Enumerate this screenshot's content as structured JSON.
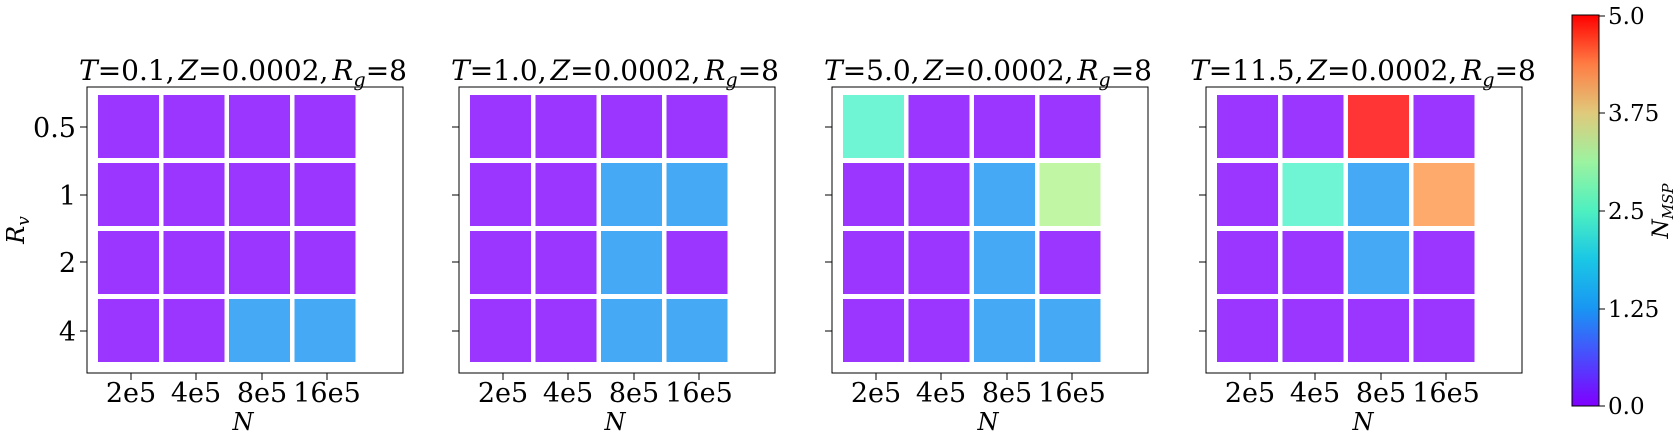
{
  "chart_data": [
    {
      "type": "heatmap",
      "title": "T = 0.1, Z = 0.0002, R_g = 8",
      "title_parts": {
        "p1": "T",
        "p2": "=0.1,",
        "p3": "Z",
        "p4": "=0.0002,",
        "p5": "R",
        "p6": "g",
        "p7": "=8"
      },
      "xlabel": "N",
      "ylabel": "R_v",
      "ylabel_parts": {
        "main": "R",
        "sub": "v"
      },
      "x_categories": [
        "2e5",
        "4e5",
        "8e5",
        "16e5"
      ],
      "y_categories": [
        "0.5",
        "1",
        "2",
        "4"
      ],
      "values": [
        [
          0,
          0,
          0,
          0
        ],
        [
          0,
          0,
          0,
          0
        ],
        [
          0,
          0,
          0,
          0
        ],
        [
          0,
          0,
          1,
          1
        ]
      ]
    },
    {
      "type": "heatmap",
      "title": "T = 1.0, Z = 0.0002, R_g = 8",
      "title_parts": {
        "p1": "T",
        "p2": "=1.0,",
        "p3": "Z",
        "p4": "=0.0002,",
        "p5": "R",
        "p6": "g",
        "p7": "=8"
      },
      "xlabel": "N",
      "x_categories": [
        "2e5",
        "4e5",
        "8e5",
        "16e5"
      ],
      "y_categories": [
        "0.5",
        "1",
        "2",
        "4"
      ],
      "values": [
        [
          0,
          0,
          0,
          0
        ],
        [
          0,
          0,
          1,
          1
        ],
        [
          0,
          0,
          1,
          0
        ],
        [
          0,
          0,
          1,
          1
        ]
      ]
    },
    {
      "type": "heatmap",
      "title": "T = 5.0, Z = 0.0002, R_g = 8",
      "title_parts": {
        "p1": "T",
        "p2": "=5.0,",
        "p3": "Z",
        "p4": "=0.0002,",
        "p5": "R",
        "p6": "g",
        "p7": "=8"
      },
      "xlabel": "N",
      "x_categories": [
        "2e5",
        "4e5",
        "8e5",
        "16e5"
      ],
      "y_categories": [
        "0.5",
        "1",
        "2",
        "4"
      ],
      "values": [
        [
          2,
          0,
          0,
          0
        ],
        [
          0,
          0,
          1,
          3
        ],
        [
          0,
          0,
          1,
          0
        ],
        [
          0,
          0,
          1,
          1
        ]
      ]
    },
    {
      "type": "heatmap",
      "title": "T = 11.5, Z = 0.0002, R_g = 8",
      "title_parts": {
        "p1": "T",
        "p2": "=11.5,",
        "p3": "Z",
        "p4": "=0.0002,",
        "p5": "R",
        "p6": "g",
        "p7": "=8"
      },
      "xlabel": "N",
      "x_categories": [
        "2e5",
        "4e5",
        "8e5",
        "16e5"
      ],
      "y_categories": [
        "0.5",
        "1",
        "2",
        "4"
      ],
      "values": [
        [
          0,
          0,
          5,
          0
        ],
        [
          0,
          2,
          1,
          4
        ],
        [
          0,
          0,
          1,
          0
        ],
        [
          0,
          0,
          0,
          0
        ]
      ]
    }
  ],
  "colorbar": {
    "label": "N_MSP",
    "label_parts": {
      "main": "N",
      "sub": "MSP"
    },
    "range": [
      0.0,
      5.0
    ],
    "ticks": [
      "0.0",
      "1.25",
      "2.5",
      "3.75",
      "5.0"
    ],
    "colormap": "rainbow"
  },
  "colors": {
    "0": "#9a36ff",
    "1": "#46a9f5",
    "2": "#6ff5d3",
    "3": "#c1f6a4",
    "4": "#ffaa6d",
    "5": "#ff3535"
  }
}
